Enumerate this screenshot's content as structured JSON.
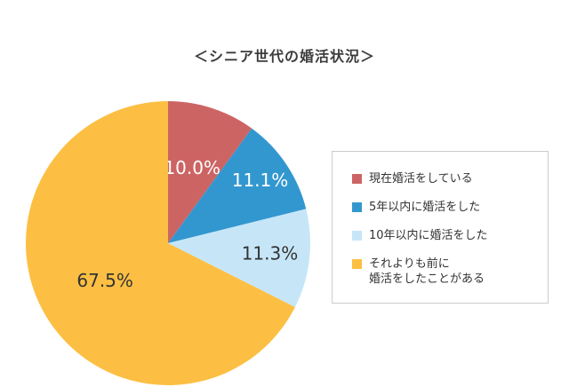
{
  "chart_data": {
    "type": "pie",
    "title": "＜シニア世代の婚活状況＞",
    "start_angle_deg": 0,
    "direction": "clockwise",
    "slices": [
      {
        "label": "現在婚活をしている",
        "value": 10.0,
        "display": "10.0%",
        "color": "#cd6464",
        "text_color": "#ffffff"
      },
      {
        "label": "5年以内に婚活をした",
        "value": 11.1,
        "display": "11.1%",
        "color": "#3397cf",
        "text_color": "#ffffff"
      },
      {
        "label": "10年以内に婚活をした",
        "value": 11.3,
        "display": "11.3%",
        "color": "#c6e6f8",
        "text_color": "#333333"
      },
      {
        "label": "それよりも前に\n婚活をしたことがある",
        "value": 67.5,
        "display": "67.5%",
        "color": "#fcbf43",
        "text_color": "#333333"
      }
    ],
    "legend_position": "right"
  }
}
